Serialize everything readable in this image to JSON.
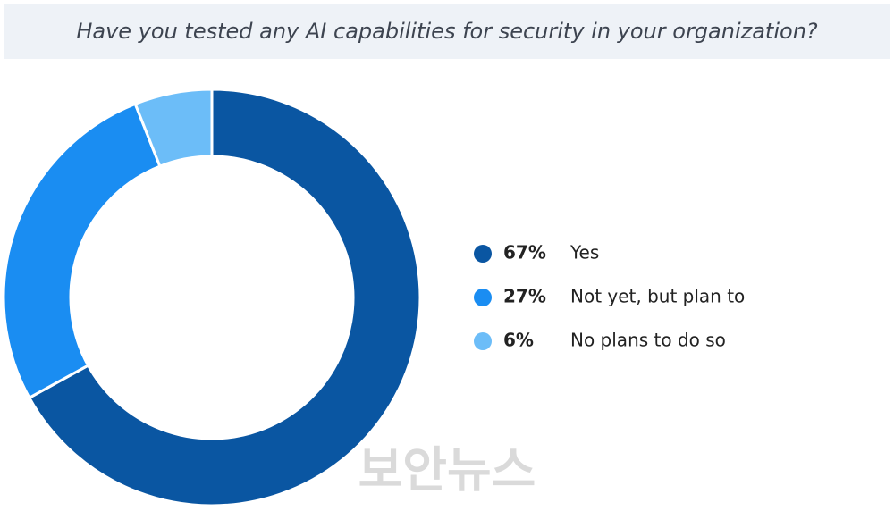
{
  "chart_data": {
    "type": "donut",
    "title": "Have you tested any AI capabilities for security in your organization?",
    "categories": [
      "Yes",
      "Not yet, but plan to",
      "No plans to do so"
    ],
    "values": [
      67,
      27,
      6
    ],
    "value_labels": [
      "67%",
      "27%",
      "6%"
    ],
    "colors": [
      "#0a56a2",
      "#1a8df2",
      "#6cbdf8"
    ],
    "watermark": "보안뉴스"
  }
}
